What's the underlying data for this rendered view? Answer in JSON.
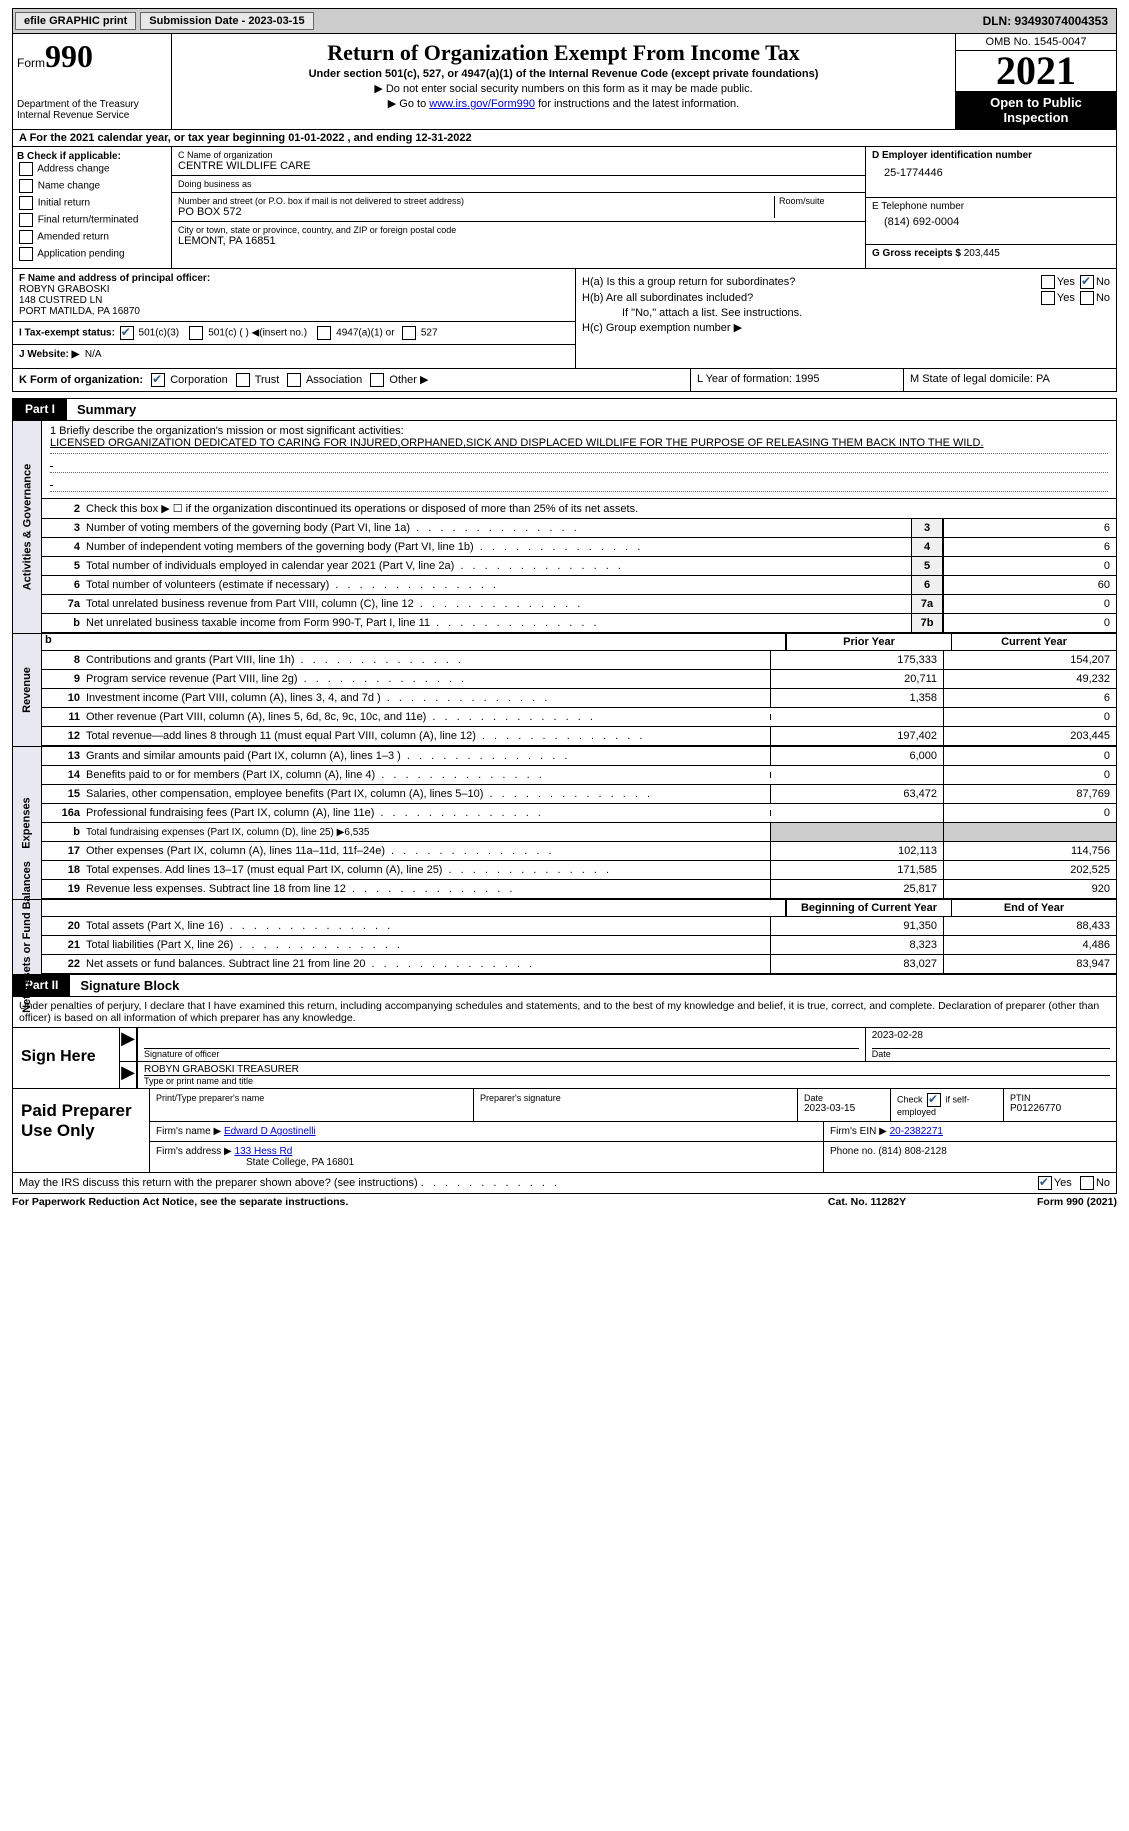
{
  "top_bar": {
    "efile_btn": "efile GRAPHIC print",
    "sub_label": "Submission Date - 2023-03-15",
    "dln": "DLN: 93493074004353"
  },
  "header": {
    "form_label": "Form",
    "form_num": "990",
    "dept": "Department of the Treasury",
    "irs": "Internal Revenue Service",
    "title": "Return of Organization Exempt From Income Tax",
    "subtitle": "Under section 501(c), 527, or 4947(a)(1) of the Internal Revenue Code (except private foundations)",
    "note1": "▶ Do not enter social security numbers on this form as it may be made public.",
    "note2_pre": "▶ Go to ",
    "note2_link": "www.irs.gov/Form990",
    "note2_post": " for instructions and the latest information.",
    "omb": "OMB No. 1545-0047",
    "year": "2021",
    "open": "Open to Public Inspection"
  },
  "cal_year": "A For the 2021 calendar year, or tax year beginning 01-01-2022   , and ending 12-31-2022",
  "section_b": {
    "title": "B Check if applicable:",
    "opts": [
      "Address change",
      "Name change",
      "Initial return",
      "Final return/terminated",
      "Amended return",
      "Application pending"
    ]
  },
  "section_c": {
    "name_label": "C Name of organization",
    "name": "CENTRE WILDLIFE CARE",
    "dba_label": "Doing business as",
    "dba": "",
    "addr_label": "Number and street (or P.O. box if mail is not delivered to street address)",
    "room_label": "Room/suite",
    "addr": "PO BOX 572",
    "city_label": "City or town, state or province, country, and ZIP or foreign postal code",
    "city": "LEMONT, PA  16851"
  },
  "section_d": {
    "ein_label": "D Employer identification number",
    "ein": "25-1774446",
    "tel_label": "E Telephone number",
    "tel": "(814) 692-0004",
    "gross_label": "G Gross receipts $",
    "gross": "203,445"
  },
  "section_f": {
    "label": "F  Name and address of principal officer:",
    "name": "ROBYN GRABOSKI",
    "addr1": "148 CUSTRED LN",
    "addr2": "PORT MATILDA, PA  16870"
  },
  "tax_status": {
    "label": "I  Tax-exempt status:",
    "opt1": "501(c)(3)",
    "opt2": "501(c) (  ) ◀(insert no.)",
    "opt3": "4947(a)(1) or",
    "opt4": "527"
  },
  "website": {
    "label": "J  Website: ▶",
    "val": "N/A"
  },
  "section_h": {
    "a_label": "H(a)  Is this a group return for subordinates?",
    "b_label": "H(b)  Are all subordinates included?",
    "b_note": "If \"No,\" attach a list. See instructions.",
    "c_label": "H(c)  Group exemption number ▶",
    "yes": "Yes",
    "no": "No"
  },
  "row_k": {
    "k": "K Form of organization:",
    "corp": "Corporation",
    "trust": "Trust",
    "assoc": "Association",
    "other": "Other ▶",
    "l": "L Year of formation: 1995",
    "m": "M State of legal domicile: PA"
  },
  "part1": {
    "tab": "Part I",
    "title": "Summary"
  },
  "mission": {
    "q": "1  Briefly describe the organization's mission or most significant activities:",
    "text": "LICENSED ORGANIZATION DEDICATED TO CARING FOR INJURED,ORPHANED,SICK AND DISPLACED WILDLIFE FOR THE PURPOSE OF RELEASING THEM BACK INTO THE WILD."
  },
  "line2": "Check this box ▶ ☐ if the organization discontinued its operations or disposed of more than 25% of its net assets.",
  "side_labels": {
    "gov": "Activities & Governance",
    "rev": "Revenue",
    "exp": "Expenses",
    "net": "Net Assets or Fund Balances"
  },
  "gov_rows": [
    {
      "n": "3",
      "t": "Number of voting members of the governing body (Part VI, line 1a)",
      "box": "3",
      "v": "6"
    },
    {
      "n": "4",
      "t": "Number of independent voting members of the governing body (Part VI, line 1b)",
      "box": "4",
      "v": "6"
    },
    {
      "n": "5",
      "t": "Total number of individuals employed in calendar year 2021 (Part V, line 2a)",
      "box": "5",
      "v": "0"
    },
    {
      "n": "6",
      "t": "Total number of volunteers (estimate if necessary)",
      "box": "6",
      "v": "60"
    },
    {
      "n": "7a",
      "t": "Total unrelated business revenue from Part VIII, column (C), line 12",
      "box": "7a",
      "v": "0"
    },
    {
      "n": "b",
      "t": "Net unrelated business taxable income from Form 990-T, Part I, line 11",
      "box": "7b",
      "v": "0"
    }
  ],
  "col_heads": {
    "prior": "Prior Year",
    "current": "Current Year"
  },
  "rev_rows": [
    {
      "n": "8",
      "t": "Contributions and grants (Part VIII, line 1h)",
      "v1": "175,333",
      "v2": "154,207"
    },
    {
      "n": "9",
      "t": "Program service revenue (Part VIII, line 2g)",
      "v1": "20,711",
      "v2": "49,232"
    },
    {
      "n": "10",
      "t": "Investment income (Part VIII, column (A), lines 3, 4, and 7d )",
      "v1": "1,358",
      "v2": "6"
    },
    {
      "n": "11",
      "t": "Other revenue (Part VIII, column (A), lines 5, 6d, 8c, 9c, 10c, and 11e)",
      "v1": "",
      "v2": "0"
    },
    {
      "n": "12",
      "t": "Total revenue—add lines 8 through 11 (must equal Part VIII, column (A), line 12)",
      "v1": "197,402",
      "v2": "203,445"
    }
  ],
  "exp_rows": [
    {
      "n": "13",
      "t": "Grants and similar amounts paid (Part IX, column (A), lines 1–3 )",
      "v1": "6,000",
      "v2": "0"
    },
    {
      "n": "14",
      "t": "Benefits paid to or for members (Part IX, column (A), line 4)",
      "v1": "",
      "v2": "0"
    },
    {
      "n": "15",
      "t": "Salaries, other compensation, employee benefits (Part IX, column (A), lines 5–10)",
      "v1": "63,472",
      "v2": "87,769"
    },
    {
      "n": "16a",
      "t": "Professional fundraising fees (Part IX, column (A), line 11e)",
      "v1": "",
      "v2": "0"
    },
    {
      "n": "b",
      "t": "Total fundraising expenses (Part IX, column (D), line 25) ▶6,535",
      "shade": true
    },
    {
      "n": "17",
      "t": "Other expenses (Part IX, column (A), lines 11a–11d, 11f–24e)",
      "v1": "102,113",
      "v2": "114,756"
    },
    {
      "n": "18",
      "t": "Total expenses. Add lines 13–17 (must equal Part IX, column (A), line 25)",
      "v1": "171,585",
      "v2": "202,525"
    },
    {
      "n": "19",
      "t": "Revenue less expenses. Subtract line 18 from line 12",
      "v1": "25,817",
      "v2": "920"
    }
  ],
  "net_heads": {
    "begin": "Beginning of Current Year",
    "end": "End of Year"
  },
  "net_rows": [
    {
      "n": "20",
      "t": "Total assets (Part X, line 16)",
      "v1": "91,350",
      "v2": "88,433"
    },
    {
      "n": "21",
      "t": "Total liabilities (Part X, line 26)",
      "v1": "8,323",
      "v2": "4,486"
    },
    {
      "n": "22",
      "t": "Net assets or fund balances. Subtract line 21 from line 20",
      "v1": "83,027",
      "v2": "83,947"
    }
  ],
  "part2": {
    "tab": "Part II",
    "title": "Signature Block"
  },
  "declare": "Under penalties of perjury, I declare that I have examined this return, including accompanying schedules and statements, and to the best of my knowledge and belief, it is true, correct, and complete. Declaration of preparer (other than officer) is based on all information of which preparer has any knowledge.",
  "sign": {
    "here": "Sign Here",
    "sig_label": "Signature of officer",
    "date": "2023-02-28",
    "date_label": "Date",
    "name": "ROBYN GRABOSKI  TREASURER",
    "name_label": "Type or print name and title"
  },
  "prep": {
    "title": "Paid Preparer Use Only",
    "pt_label": "Print/Type preparer's name",
    "sig_label": "Preparer's signature",
    "date_label": "Date",
    "date": "2023-03-15",
    "check_label": "Check ☑ if self-employed",
    "ptin_label": "PTIN",
    "ptin": "P01226770",
    "firm_name_label": "Firm's name    ▶",
    "firm_name": "Edward D Agostinelli",
    "firm_ein_label": "Firm's EIN ▶",
    "firm_ein": "20-2382271",
    "firm_addr_label": "Firm's address ▶",
    "firm_addr1": "133 Hess Rd",
    "firm_addr2": "State College, PA  16801",
    "phone_label": "Phone no.",
    "phone": "(814) 808-2128"
  },
  "discuss": "May the IRS discuss this return with the preparer shown above? (see instructions)",
  "bottom": {
    "pra": "For Paperwork Reduction Act Notice, see the separate instructions.",
    "cat": "Cat. No. 11282Y",
    "form": "Form 990 (2021)"
  }
}
